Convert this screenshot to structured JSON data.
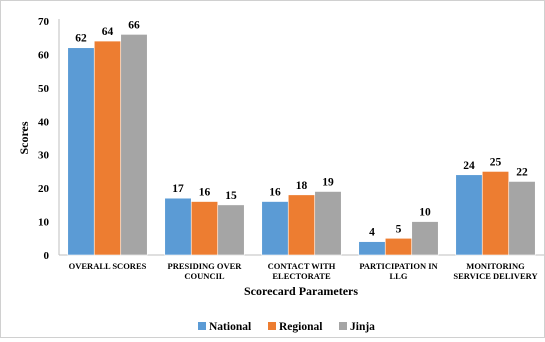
{
  "chart_data": {
    "type": "bar",
    "xlabel": "Scorecard Parameters",
    "ylabel": "Scores",
    "ylim": [
      0,
      70
    ],
    "yticks": [
      0,
      10,
      20,
      30,
      40,
      50,
      60,
      70
    ],
    "grid": false,
    "legend_position": "bottom",
    "categories": [
      [
        "OVERALL SCORES"
      ],
      [
        "PRESIDING OVER",
        "COUNCIL"
      ],
      [
        "CONTACT WITH",
        "ELECTORATE"
      ],
      [
        "PARTICIPATION IN",
        "LLG"
      ],
      [
        "MONITORING",
        "SERVICE DELIVERY"
      ]
    ],
    "series": [
      {
        "name": "National",
        "color": "#5b9bd5",
        "values": [
          62,
          17,
          16,
          4,
          24
        ]
      },
      {
        "name": "Regional",
        "color": "#ed7d31",
        "values": [
          64,
          16,
          18,
          5,
          25
        ]
      },
      {
        "name": "Jinja",
        "color": "#a5a5a5",
        "values": [
          66,
          15,
          19,
          10,
          22
        ]
      }
    ]
  }
}
